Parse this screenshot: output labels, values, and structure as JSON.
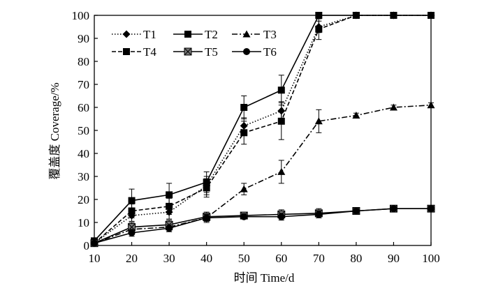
{
  "chart_data": {
    "type": "line",
    "xlabel": "时间 Time/d",
    "ylabel": "覆盖度 Coverage/%",
    "xlim": [
      10,
      100
    ],
    "ylim": [
      0,
      100
    ],
    "x_ticks": [
      10,
      20,
      30,
      40,
      50,
      60,
      70,
      80,
      90,
      100
    ],
    "y_ticks": [
      0,
      10,
      20,
      30,
      40,
      50,
      60,
      70,
      80,
      90,
      100
    ],
    "grid": false,
    "legend_position": "top-left",
    "x": [
      10,
      20,
      30,
      40,
      50,
      60,
      70,
      80,
      90,
      100
    ],
    "series": [
      {
        "name": "T1",
        "marker": "diamond",
        "dash": "dotted",
        "values": [
          1,
          13,
          14.5,
          26,
          52,
          58.5,
          95,
          100,
          100,
          100
        ],
        "errors": [
          0.5,
          2.5,
          3,
          4,
          3.5,
          4,
          2.5,
          0,
          0,
          0
        ]
      },
      {
        "name": "T2",
        "marker": "square",
        "dash": "solid",
        "values": [
          2,
          19.5,
          22,
          27.5,
          60,
          67.5,
          100,
          100,
          100,
          100
        ],
        "errors": [
          0.5,
          5,
          5,
          4.5,
          5,
          6.5,
          0,
          0,
          0,
          0
        ]
      },
      {
        "name": "T3",
        "marker": "triangle",
        "dash": "dashdot",
        "values": [
          1,
          7,
          8,
          12,
          24.5,
          32,
          54,
          56.5,
          60,
          61
        ],
        "errors": [
          0.5,
          2,
          2,
          2,
          2.5,
          5,
          5,
          1,
          1,
          1
        ]
      },
      {
        "name": "T4",
        "marker": "square",
        "dash": "dashed",
        "values": [
          1,
          15,
          17,
          25,
          49,
          54,
          94,
          100,
          100,
          100
        ],
        "errors": [
          0.5,
          3,
          3.5,
          4,
          5,
          8,
          4.5,
          0,
          0,
          0
        ]
      },
      {
        "name": "T5",
        "marker": "squarex",
        "dash": "solid",
        "values": [
          1,
          8,
          9,
          12.5,
          13,
          13.5,
          14,
          15,
          16,
          16
        ],
        "errors": [
          0.5,
          2,
          2,
          2,
          1,
          2,
          2,
          1.5,
          1,
          0.5
        ]
      },
      {
        "name": "T6",
        "marker": "circle",
        "dash": "solid",
        "values": [
          1,
          5.5,
          7.5,
          12,
          12.5,
          12.5,
          13.5,
          15,
          16,
          16
        ],
        "errors": [
          0.5,
          1.5,
          1.5,
          1.5,
          1,
          1.5,
          1.5,
          1.5,
          1,
          0.5
        ]
      }
    ]
  }
}
